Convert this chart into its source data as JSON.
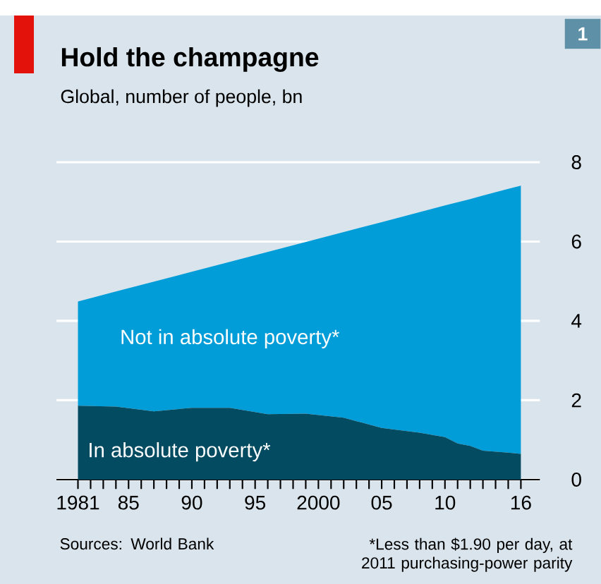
{
  "chart_data": {
    "type": "area",
    "title": "Hold the champagne",
    "subtitle": "Global, number of people, bn",
    "annotations": [
      "1",
      "Sources: World Bank",
      "*Less than $1.90 per day, at 2011 purchasing-power parity"
    ],
    "x": [
      1981,
      1984,
      1987,
      1990,
      1993,
      1996,
      1999,
      2002,
      2005,
      2008,
      2010,
      2011,
      2012,
      2013,
      2015,
      2016
    ],
    "stacked": true,
    "series": [
      {
        "name": "In absolute poverty*",
        "color": "#034b61",
        "values": [
          1.86,
          1.84,
          1.72,
          1.81,
          1.81,
          1.65,
          1.66,
          1.56,
          1.3,
          1.18,
          1.07,
          0.91,
          0.85,
          0.73,
          0.68,
          0.65
        ]
      },
      {
        "name": "Not in absolute poverty*",
        "color": "#019dd8",
        "values": [
          2.63,
          2.9,
          3.27,
          3.43,
          3.68,
          4.09,
          4.33,
          4.68,
          5.19,
          5.56,
          5.84,
          6.08,
          6.22,
          6.43,
          6.65,
          6.76
        ]
      }
    ],
    "xlim": [
      1979.3,
      2017.5
    ],
    "ylim": [
      0,
      8
    ],
    "xticks": [
      {
        "value": 1981,
        "label": "1981"
      },
      {
        "value": 1982,
        "label": null
      },
      {
        "value": 1983,
        "label": null
      },
      {
        "value": 1984,
        "label": null
      },
      {
        "value": 1985,
        "label": "85"
      },
      {
        "value": 1986,
        "label": null
      },
      {
        "value": 1987,
        "label": null
      },
      {
        "value": 1988,
        "label": null
      },
      {
        "value": 1989,
        "label": null
      },
      {
        "value": 1990,
        "label": "90"
      },
      {
        "value": 1991,
        "label": null
      },
      {
        "value": 1992,
        "label": null
      },
      {
        "value": 1993,
        "label": null
      },
      {
        "value": 1994,
        "label": null
      },
      {
        "value": 1995,
        "label": "95"
      },
      {
        "value": 1996,
        "label": null
      },
      {
        "value": 1997,
        "label": null
      },
      {
        "value": 1998,
        "label": null
      },
      {
        "value": 1999,
        "label": null
      },
      {
        "value": 2000,
        "label": "2000"
      },
      {
        "value": 2001,
        "label": null
      },
      {
        "value": 2002,
        "label": null
      },
      {
        "value": 2003,
        "label": null
      },
      {
        "value": 2004,
        "label": null
      },
      {
        "value": 2005,
        "label": "05"
      },
      {
        "value": 2006,
        "label": null
      },
      {
        "value": 2007,
        "label": null
      },
      {
        "value": 2008,
        "label": null
      },
      {
        "value": 2009,
        "label": null
      },
      {
        "value": 2010,
        "label": "10"
      },
      {
        "value": 2011,
        "label": null
      },
      {
        "value": 2012,
        "label": null
      },
      {
        "value": 2013,
        "label": null
      },
      {
        "value": 2014,
        "label": null
      },
      {
        "value": 2015,
        "label": null
      },
      {
        "value": 2016,
        "label": "16"
      }
    ],
    "yticks": [
      0,
      2,
      4,
      6,
      8
    ],
    "grid": "y"
  }
}
